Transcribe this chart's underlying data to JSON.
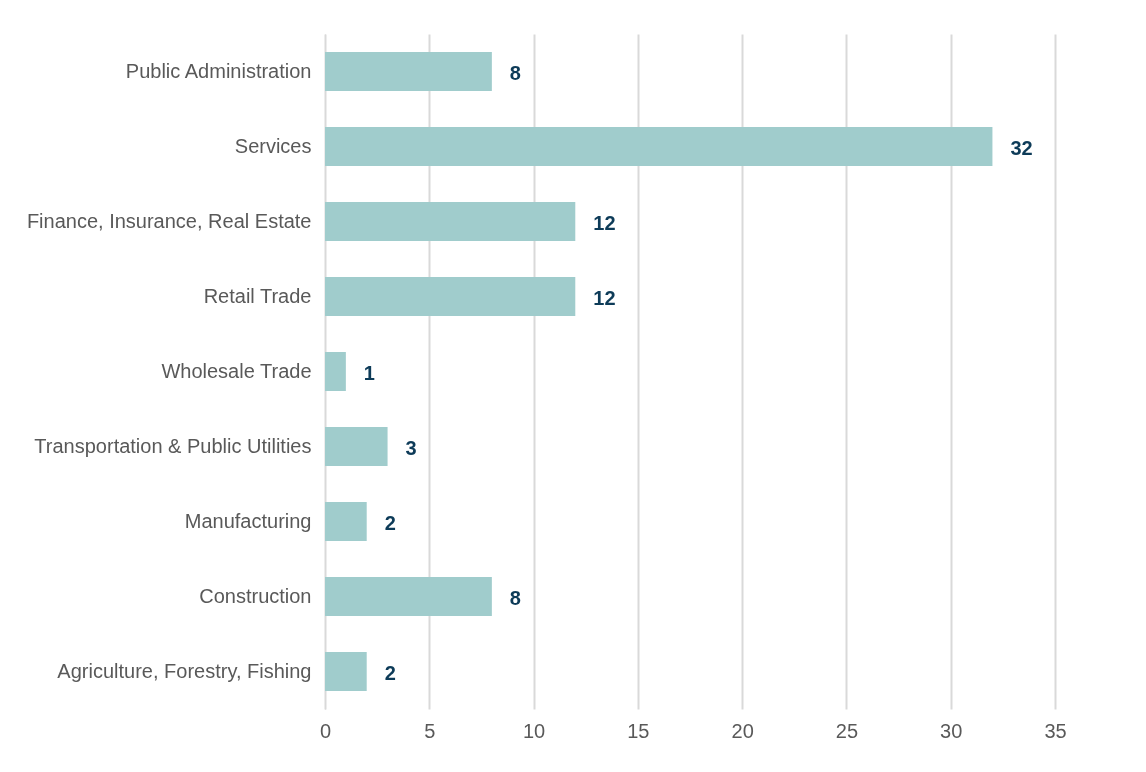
{
  "chart_data": {
    "type": "bar",
    "orientation": "horizontal",
    "categories": [
      "Public Administration",
      "Services",
      "Finance, Insurance, Real Estate",
      "Retail Trade",
      "Wholesale Trade",
      "Transportation & Public Utilities",
      "Manufacturing",
      "Construction",
      "Agriculture, Forestry, Fishing"
    ],
    "values": [
      8,
      32,
      12,
      12,
      1,
      3,
      2,
      8,
      2
    ],
    "color": "#a0cccc",
    "xlim": [
      0,
      35
    ],
    "xticks": [
      0,
      5,
      10,
      15,
      20,
      25,
      30,
      35
    ],
    "grid": "x",
    "data_labels": true
  }
}
